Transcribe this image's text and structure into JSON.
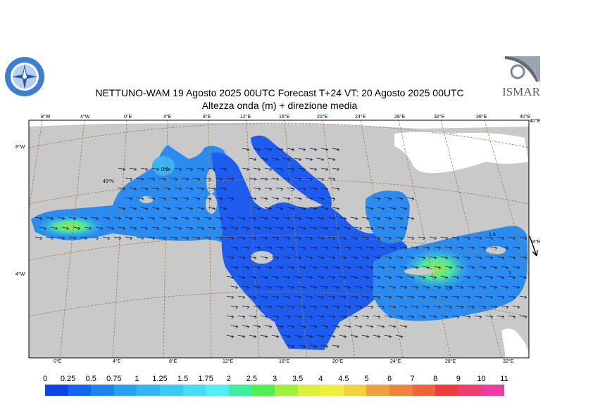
{
  "header": {
    "title_line1": "NETTUNO-WAM  19   Agosto  2025 00UTC Forecast T+24 VT: 20   Agosto  2025 00UTC",
    "title_line2": "Altezza onda (m) + direzione media"
  },
  "logos": {
    "right_text": "ISMAR"
  },
  "map": {
    "top_lon_labels": [
      "8°W",
      "4°W",
      "0°E",
      "4°E",
      "8°E",
      "12°E",
      "16°E",
      "20°E",
      "24°E",
      "28°E",
      "32°E",
      "36°E",
      "40°E"
    ],
    "bottom_lon_labels": [
      "0°E",
      "4°E",
      "8°E",
      "12°E",
      "16°E",
      "20°E",
      "24°E",
      "28°E",
      "32°E"
    ],
    "left_lat_labels": [
      "8°W",
      "4°W"
    ],
    "right_lat_labels": [
      "40°E",
      "8°E"
    ],
    "inner_label": "40°N",
    "contour_labels": [
      "0.5",
      "1.5",
      "1.5",
      "1"
    ],
    "colors": {
      "land": "#c9c9c9",
      "sea_low": "#1e5cf0",
      "sea_mid": "#2a8cf0",
      "sea_high": "#3ab4f5",
      "grid": "#a07a50"
    }
  },
  "colorbar": {
    "labels": [
      "0",
      "0.25",
      "0.5",
      "0.75",
      "1",
      "1.25",
      "1.5",
      "1.75",
      "2",
      "2.5",
      "3",
      "3.5",
      "4",
      "4.5",
      "5",
      "6",
      "7",
      "8",
      "9",
      "10",
      "11"
    ],
    "colors": [
      "#0a46e6",
      "#1464f0",
      "#1e82f0",
      "#28a0f5",
      "#32b4f5",
      "#3cc8f5",
      "#46dcf5",
      "#50f0f0",
      "#3cf0a0",
      "#50f050",
      "#a0f03c",
      "#dcf03c",
      "#f0f03c",
      "#f0d23c",
      "#f0a03c",
      "#f0823c",
      "#f0643c",
      "#f03c3c",
      "#f03c6e",
      "#f03ca0",
      "#f03cdc"
    ]
  }
}
